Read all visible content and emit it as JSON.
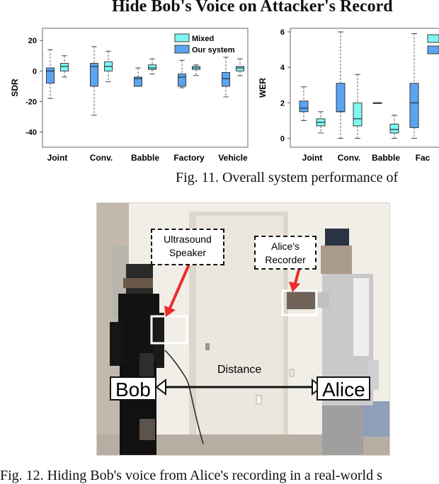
{
  "page_title": "Hide Bob's Voice on Attacker's Record",
  "figure11": {
    "caption": "Fig. 11.   Overall system performance of"
  },
  "figure12": {
    "caption": "Fig. 12.  Hiding Bob's voice from Alice's recording in a real-world s",
    "labels": {
      "ultrasound_speaker": "Ultrasound\nSpeaker",
      "alices_recorder": "Alice's\nRecorder",
      "distance": "Distance",
      "bob": "Bob",
      "alice": "Alice"
    }
  },
  "chart_data": [
    {
      "type": "box",
      "title": "",
      "xlabel": "",
      "ylabel": "SDR",
      "ylim": [
        -50,
        28
      ],
      "yticks": [
        20,
        0,
        -20,
        -40
      ],
      "categories": [
        "Joint",
        "Conv.",
        "Babble",
        "Factory",
        "Vehicle"
      ],
      "legend": {
        "position": "top-right",
        "entries": [
          {
            "name": "Mixed",
            "color": "#7ff7f1"
          },
          {
            "name": "Our system",
            "color": "#5aa5f3"
          }
        ]
      },
      "series": [
        {
          "name": "Our system",
          "color": "#5aa5f3",
          "boxes": [
            {
              "category": "Joint",
              "whisker_low": -18,
              "q1": -8,
              "median": 0,
              "q3": 2,
              "whisker_high": 14
            },
            {
              "category": "Conv.",
              "whisker_low": -29,
              "q1": -10,
              "median": 3,
              "q3": 5,
              "whisker_high": 16
            },
            {
              "category": "Babble",
              "whisker_low": -10,
              "q1": -10,
              "median": -5,
              "q3": -4,
              "whisker_high": 2
            },
            {
              "category": "Factory",
              "whisker_low": -11,
              "q1": -10,
              "median": -4,
              "q3": -2,
              "whisker_high": 7
            },
            {
              "category": "Vehicle",
              "whisker_low": -17,
              "q1": -10,
              "median": -5,
              "q3": -1,
              "whisker_high": 9
            }
          ]
        },
        {
          "name": "Mixed",
          "color": "#7ff7f1",
          "boxes": [
            {
              "category": "Joint",
              "whisker_low": -4,
              "q1": 0,
              "median": 3,
              "q3": 5,
              "whisker_high": 10
            },
            {
              "category": "Conv.",
              "whisker_low": -7,
              "q1": 0,
              "median": 3,
              "q3": 6,
              "whisker_high": 13
            },
            {
              "category": "Babble",
              "whisker_low": -2,
              "q1": 1,
              "median": 2,
              "q3": 4,
              "whisker_high": 8
            },
            {
              "category": "Factory",
              "whisker_low": -3,
              "q1": 1,
              "median": 2,
              "q3": 3,
              "whisker_high": 4
            },
            {
              "category": "Vehicle",
              "whisker_low": -3,
              "q1": 0,
              "median": 2,
              "q3": 3,
              "whisker_high": 8
            }
          ]
        }
      ]
    },
    {
      "type": "box",
      "title": "",
      "xlabel": "",
      "ylabel": "WER",
      "ylim": [
        -0.5,
        6.2
      ],
      "yticks": [
        6,
        4,
        2,
        0
      ],
      "categories": [
        "Joint",
        "Conv.",
        "Babble",
        "Fac"
      ],
      "series": [
        {
          "name": "Our system",
          "color": "#5aa5f3",
          "boxes": [
            {
              "category": "Joint",
              "whisker_low": 1.0,
              "q1": 1.5,
              "median": 1.7,
              "q3": 2.1,
              "whisker_high": 2.9
            },
            {
              "category": "Conv.",
              "whisker_low": 0.0,
              "q1": 1.5,
              "median": 1.5,
              "q3": 3.1,
              "whisker_high": 6.0
            },
            {
              "category": "Babble",
              "whisker_low": 2.0,
              "q1": 2.0,
              "median": 2.0,
              "q3": 2.0,
              "whisker_high": 2.0
            },
            {
              "category": "Fac",
              "whisker_low": 0.0,
              "q1": 0.6,
              "median": 2.0,
              "q3": 3.1,
              "whisker_high": 5.9
            }
          ]
        },
        {
          "name": "Mixed",
          "color": "#7ff7f1",
          "boxes": [
            {
              "category": "Joint",
              "whisker_low": 0.3,
              "q1": 0.7,
              "median": 0.9,
              "q3": 1.1,
              "whisker_high": 1.5
            },
            {
              "category": "Conv.",
              "whisker_low": 0.0,
              "q1": 0.7,
              "median": 1.1,
              "q3": 2.0,
              "whisker_high": 3.6
            },
            {
              "category": "Babble",
              "whisker_low": 0.0,
              "q1": 0.3,
              "median": 0.5,
              "q3": 0.8,
              "whisker_high": 1.3
            }
          ]
        }
      ]
    }
  ]
}
